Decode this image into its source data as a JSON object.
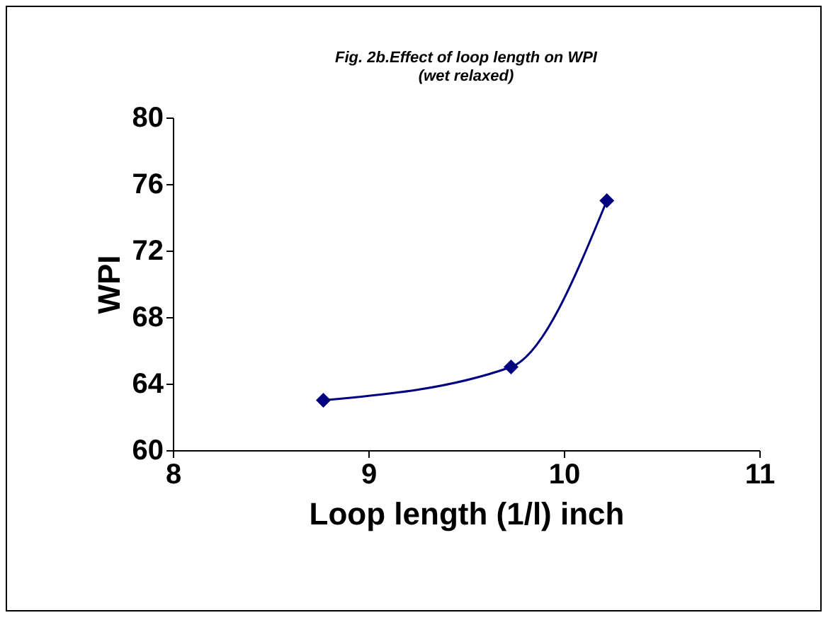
{
  "chart_data": {
    "type": "line",
    "title": [
      "Fig. 2b.Effect of loop length on WPI",
      "(wet relaxed)"
    ],
    "xlabel": "Loop length (1/l) inch",
    "ylabel": "WPI",
    "x": [
      8.77,
      9.73,
      10.22
    ],
    "series": [
      {
        "color": "#000080",
        "values": [
          63,
          65,
          75
        ]
      }
    ],
    "xlim": [
      8,
      11
    ],
    "xticks": [
      8,
      9,
      10,
      11
    ],
    "ylim": [
      60,
      80
    ],
    "yticks": [
      60,
      64,
      68,
      72,
      76,
      80
    ],
    "grid": false,
    "marker": "diamond",
    "line_style": "solid"
  }
}
